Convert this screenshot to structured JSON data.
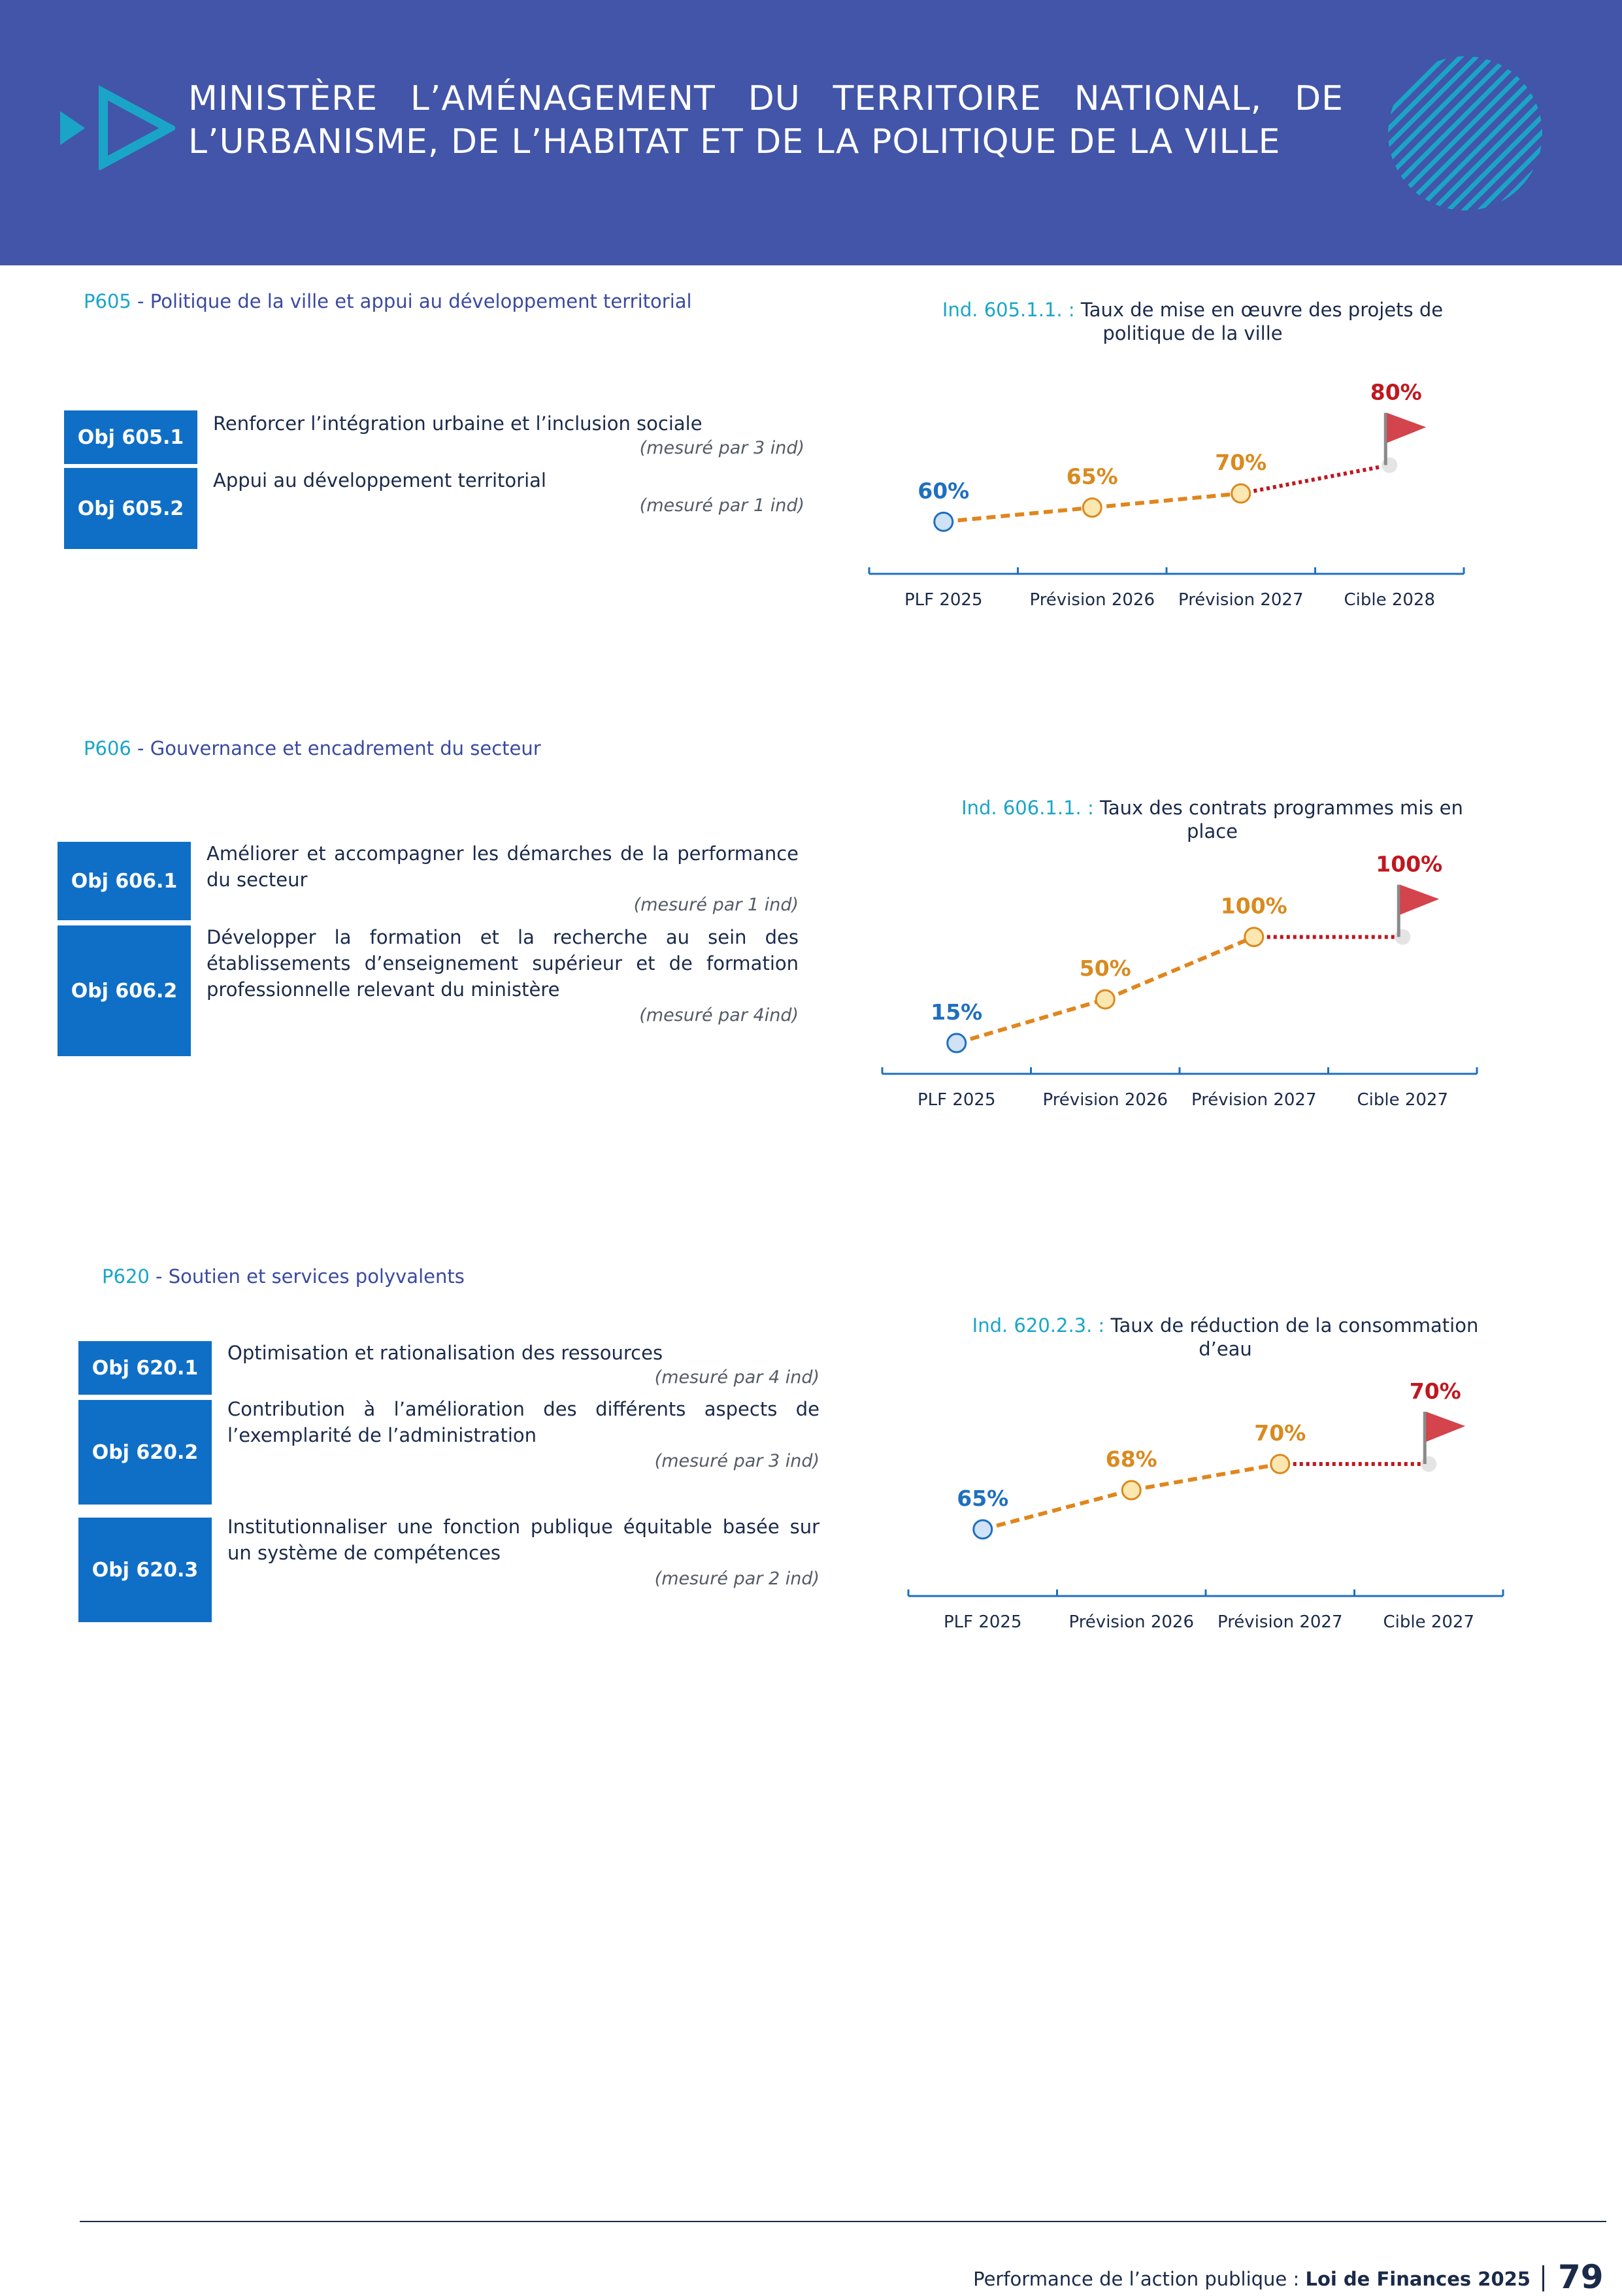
{
  "header": {
    "title": "MINISTÈRE L’AMÉNAGEMENT DU TERRITOIRE NATIONAL, DE L’URBANISME, DE L’HABITAT ET DE LA POLITIQUE DE LA VILLE",
    "accent_color": "#1aa5c8",
    "background_color": "#4255a8"
  },
  "sections": [
    {
      "code": "P605",
      "title": " - Politique de la ville et appui au développement territorial",
      "objectives": [
        {
          "label": "Obj 605.1",
          "text": "Renforcer l’intégration urbaine et l’inclusion sociale",
          "measure": "(mesuré par 3 ind)"
        },
        {
          "label": "Obj 605.2",
          "text": "Appui au développement territorial",
          "measure": "(mesuré par 1 ind)"
        }
      ],
      "indicator": {
        "code": "Ind. 605.1.1. :",
        "title": " Taux de mise en œuvre des projets de politique de la ville"
      }
    },
    {
      "code": "P606",
      "title": " - Gouvernance et encadrement du secteur",
      "objectives": [
        {
          "label": "Obj 606.1",
          "text": "Améliorer et accompagner les démarches de la performance du secteur",
          "measure": "(mesuré par 1 ind)"
        },
        {
          "label": "Obj 606.2",
          "text": "Développer la formation et la recherche au sein des établissements d’enseignement supérieur et de formation professionnelle relevant du ministère",
          "measure": "(mesuré par 4ind)"
        }
      ],
      "indicator": {
        "code": "Ind. 606.1.1. :",
        "title": " Taux des contrats programmes mis en place"
      }
    },
    {
      "code": "P620",
      "title": " - Soutien et services polyvalents",
      "objectives": [
        {
          "label": "Obj 620.1",
          "text": "Optimisation et rationalisation des ressources",
          "measure": "(mesuré par 4 ind)"
        },
        {
          "label": "Obj 620.2",
          "text": "Contribution à l’amélioration des différents aspects de l’exemplarité de l’administration",
          "measure": "(mesuré par 3 ind)"
        },
        {
          "label": "Obj 620.3",
          "text": "Institutionnaliser une fonction publique équitable basée sur un système de compétences",
          "measure": "(mesuré par 2 ind)"
        }
      ],
      "indicator": {
        "code": "Ind. 620.2.3. :",
        "title": " Taux de réduction de la consommation d’eau"
      }
    }
  ],
  "chart_data": [
    {
      "type": "line",
      "categories": [
        "PLF 2025",
        "Prévision 2026",
        "Prévision 2027",
        "Cible 2028"
      ],
      "values": [
        60,
        65,
        70,
        80
      ],
      "value_labels": [
        "60%",
        "65%",
        "70%",
        "80%"
      ],
      "ylim": [
        55,
        85
      ],
      "colors": {
        "first": "#1f6fbf",
        "middle": "#d98a1f",
        "target": "#c0171f",
        "line": "#e0861c",
        "target_line": "#c0171f"
      }
    },
    {
      "type": "line",
      "categories": [
        "PLF 2025",
        "Prévision 2026",
        "Prévision 2027",
        "Cible 2027"
      ],
      "values": [
        15,
        50,
        100,
        100
      ],
      "value_labels": [
        "15%",
        "50%",
        "100%",
        "100%"
      ],
      "ylim": [
        5,
        115
      ],
      "colors": {
        "first": "#1f6fbf",
        "middle": "#d98a1f",
        "target": "#c0171f",
        "line": "#e0861c",
        "target_line": "#c0171f"
      }
    },
    {
      "type": "line",
      "categories": [
        "PLF 2025",
        "Prévision 2026",
        "Prévision 2027",
        "Cible 2027"
      ],
      "values": [
        65,
        68,
        70,
        70
      ],
      "value_labels": [
        "65%",
        "68%",
        "70%",
        "70%"
      ],
      "ylim": [
        63,
        72
      ],
      "colors": {
        "first": "#1f6fbf",
        "middle": "#d98a1f",
        "target": "#c0171f",
        "line": "#e0861c",
        "target_line": "#c0171f"
      }
    }
  ],
  "footer": {
    "prefix": "Performance de l’action publique : ",
    "doc": "Loi de Finances 2025",
    "page": "79"
  }
}
